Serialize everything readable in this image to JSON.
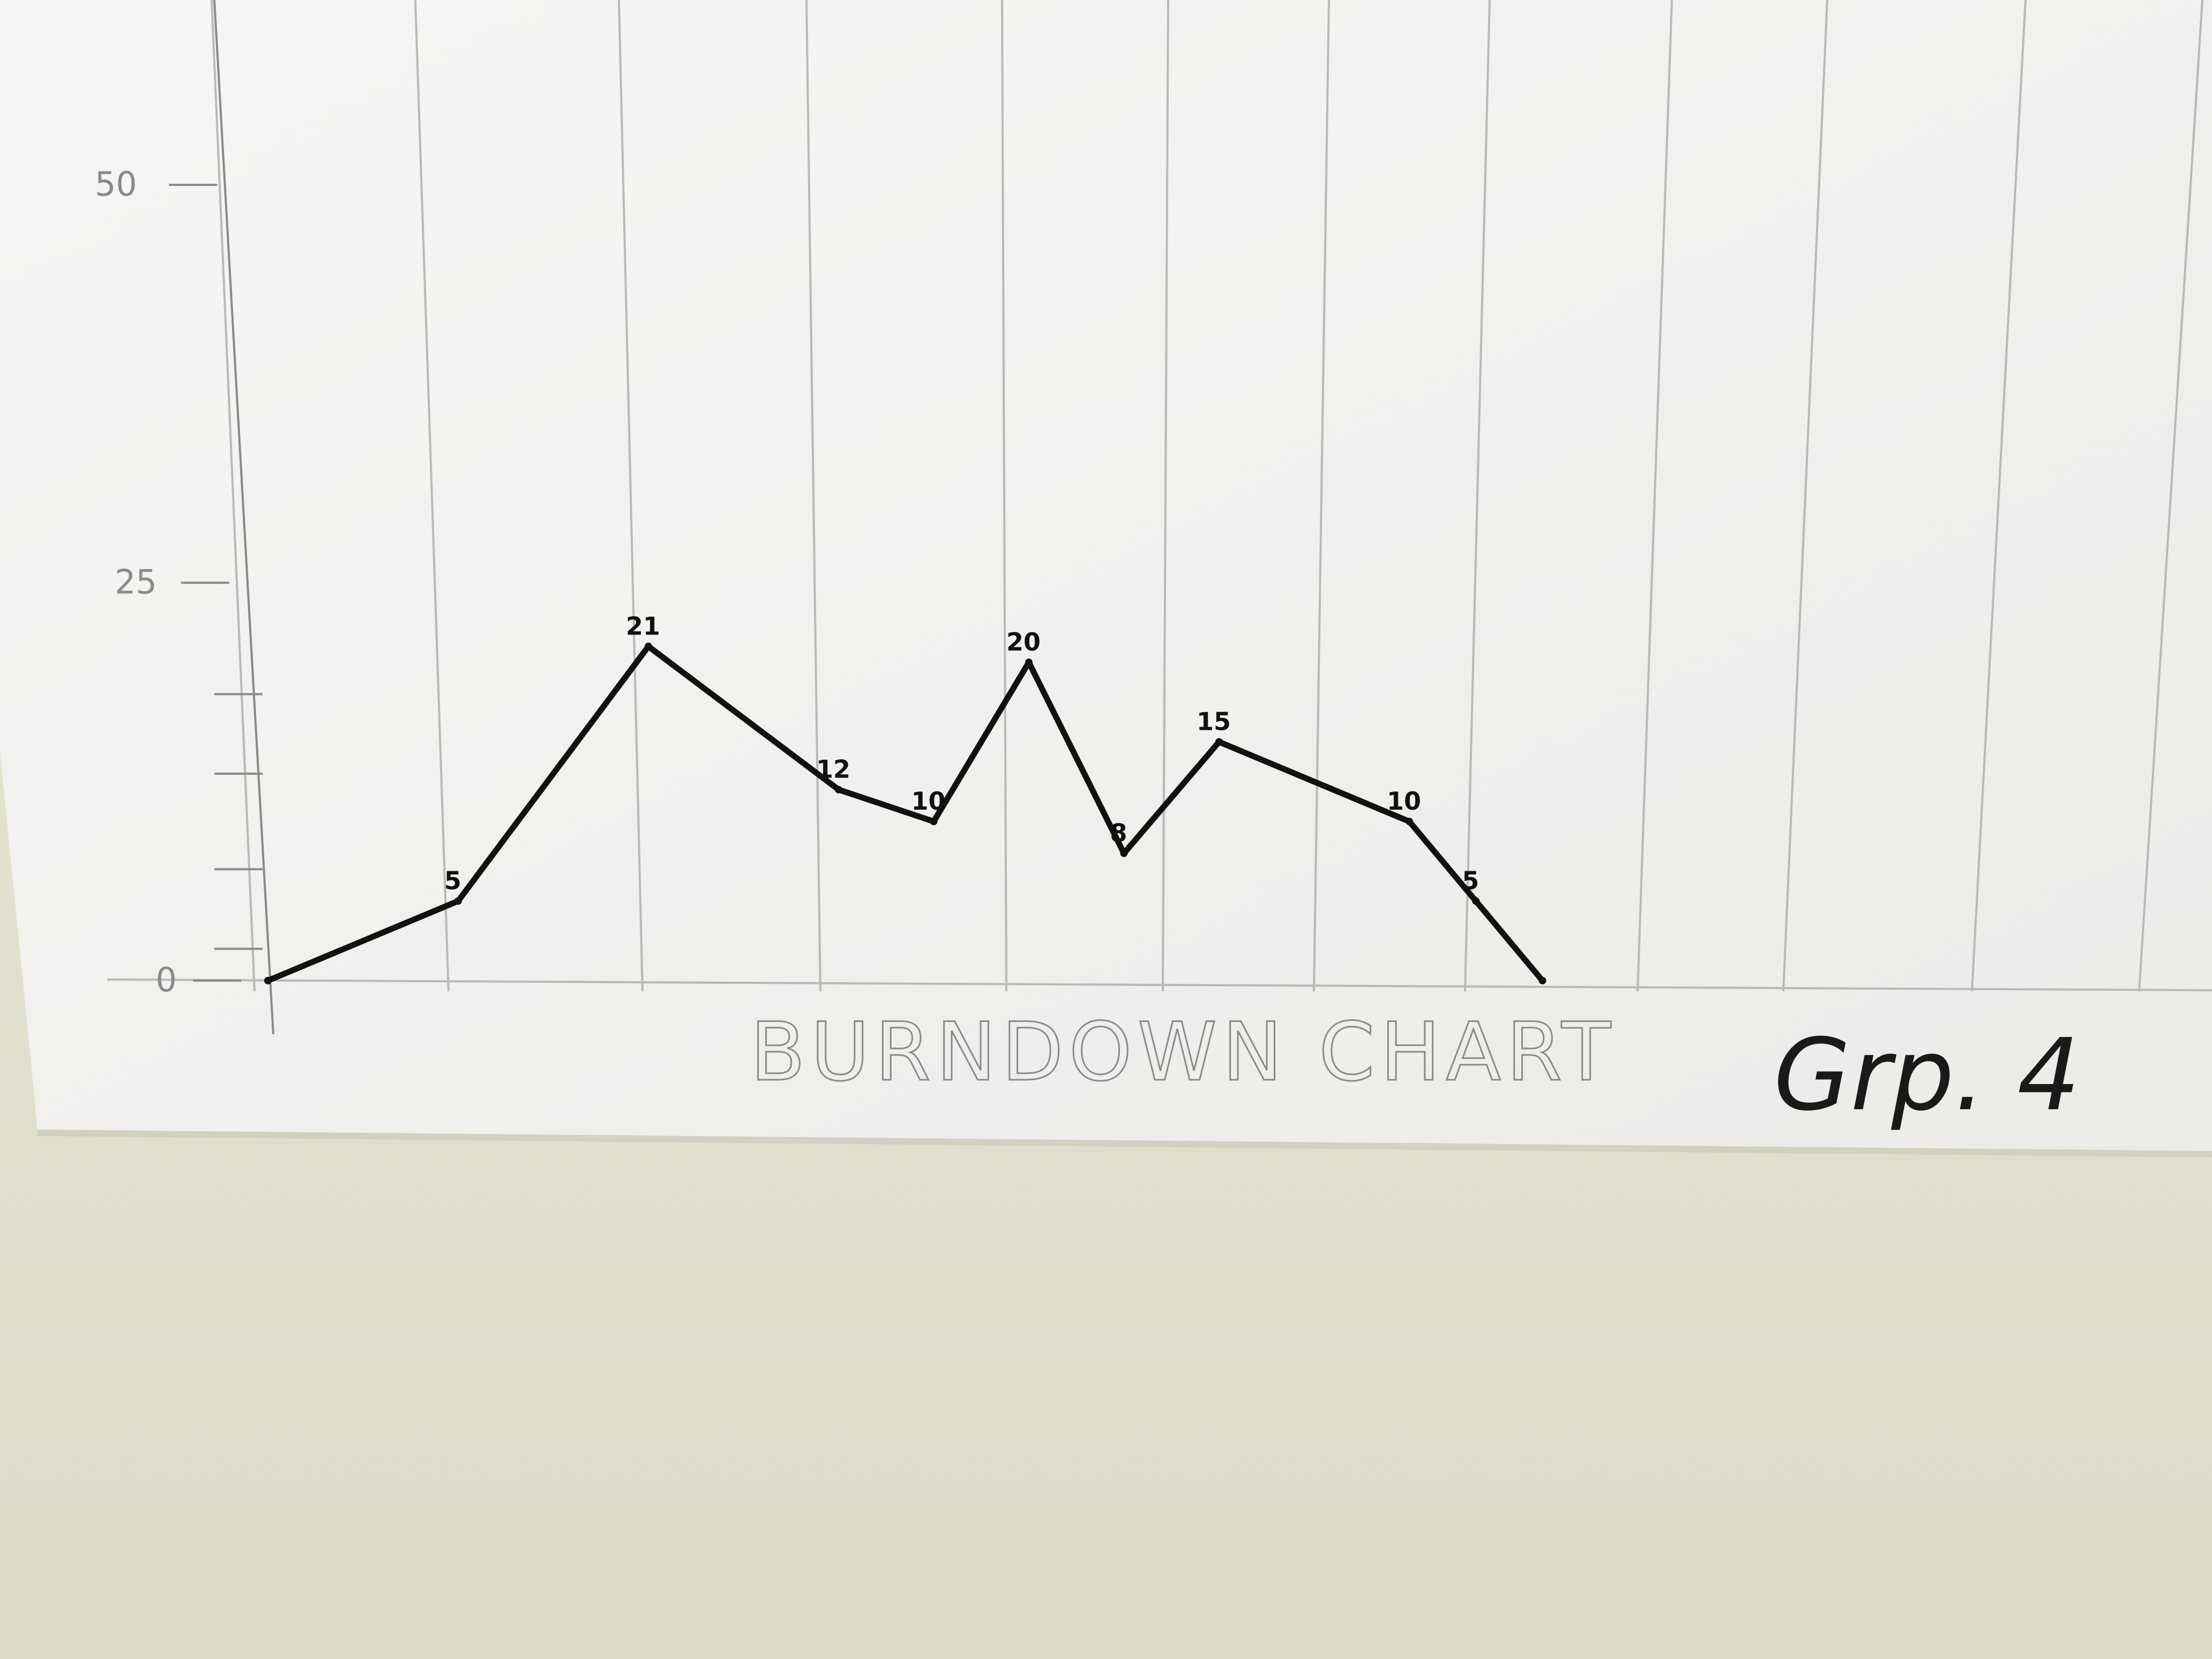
{
  "chart_data": {
    "type": "line",
    "title": "BURNDOWN CHART",
    "subtitle": "Grp. 4",
    "xlabel": "",
    "ylabel": "",
    "ylim": [
      0,
      50
    ],
    "y_ticks": [
      "0",
      "25",
      "50"
    ],
    "grid": true,
    "x": [
      0,
      1,
      2,
      3,
      3.5,
      4,
      4.5,
      5,
      6,
      6.35,
      6.7
    ],
    "values": [
      0,
      5,
      21,
      12,
      10,
      20,
      8,
      15,
      10,
      5,
      0
    ],
    "point_labels": [
      "",
      "5",
      "21",
      "12",
      "10",
      "20",
      "8",
      "15",
      "10",
      "5",
      ""
    ]
  },
  "colors": {
    "wall": "#e4e3d2",
    "paper": "#f3f3f1",
    "grid": "#b9b9b6",
    "ink": "#111111",
    "pencil": "#8a8a88"
  }
}
